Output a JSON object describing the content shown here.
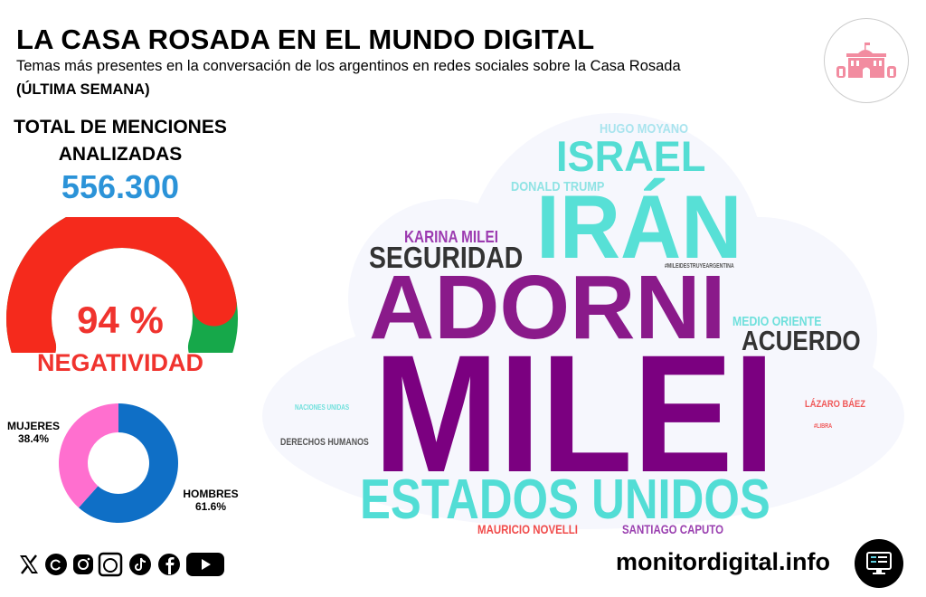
{
  "header": {
    "title": "LA CASA ROSADA EN EL MUNDO DIGITAL",
    "subtitle": "Temas más presentes en la conversación de los argentinos en redes sociales sobre la Casa Rosada",
    "period": "(ÚLTIMA SEMANA)"
  },
  "stats": {
    "total_label_1": "TOTAL DE MENCIONES",
    "total_label_2": "ANALIZADAS",
    "total_value": "556.300",
    "negativity_value": "94 %",
    "negativity_fraction": 0.94,
    "negativity_label": "NEGATIVIDAD"
  },
  "gender": {
    "women_label": "MUJERES",
    "women_value": "38.4%",
    "women_pct": 38.4,
    "men_label": "HOMBRES",
    "men_value": "61.6%",
    "men_pct": 61.6
  },
  "colors": {
    "negative": "#f52a1c",
    "positive": "#16a84a",
    "women": "#ff6fcf",
    "men": "#0f6fc6",
    "count": "#2b93d8"
  },
  "wordcloud": [
    {
      "text": "HUGO MOYANO",
      "color": "#a9e4ee"
    },
    {
      "text": "ISRAEL",
      "color": "#54ddd3"
    },
    {
      "text": "DONALD TRUMP",
      "color": "#8fe3e4"
    },
    {
      "text": "IRÁN",
      "color": "#57e0d6"
    },
    {
      "text": "KARINA MILEI",
      "color": "#9c3bb0"
    },
    {
      "text": "SEGURIDAD",
      "color": "#333333"
    },
    {
      "text": "#MILEIDESTRUYEARGENTINA",
      "color": "#555555"
    },
    {
      "text": "ADORNI",
      "color": "#8a1a8a"
    },
    {
      "text": "MEDIO ORIENTE",
      "color": "#6fe0dc"
    },
    {
      "text": "ACUERDO",
      "color": "#333333"
    },
    {
      "text": "MILEI",
      "color": "#7b0080"
    },
    {
      "text": "NACIONES UNIDAS",
      "color": "#6fe0dc"
    },
    {
      "text": "LÁZARO BÁEZ",
      "color": "#f05a5a"
    },
    {
      "text": "#LIBRA",
      "color": "#f05a5a"
    },
    {
      "text": "DERECHOS HUMANOS",
      "color": "#555555"
    },
    {
      "text": "ESTADOS UNIDOS",
      "color": "#52ddd5"
    },
    {
      "text": "MAURICIO NOVELLI",
      "color": "#f04b4b"
    },
    {
      "text": "SANTIAGO CAPUTO",
      "color": "#9a40b0"
    }
  ],
  "footer": {
    "site": "monitordigital.info",
    "social_icons": [
      "x-icon",
      "threads-icon",
      "instagram-icon",
      "bluesky-icon",
      "tiktok-icon",
      "facebook-icon",
      "youtube-icon"
    ]
  }
}
